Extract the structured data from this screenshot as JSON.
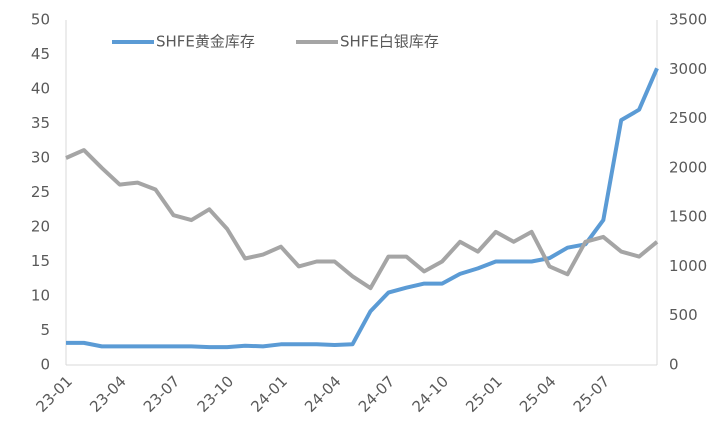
{
  "chart_data": {
    "type": "line",
    "categories": [
      "23-01",
      null,
      null,
      "23-04",
      null,
      null,
      "23-07",
      null,
      null,
      "23-10",
      null,
      null,
      "24-01",
      null,
      null,
      "24-04",
      null,
      null,
      "24-07",
      null,
      null,
      "24-10",
      null,
      null,
      "25-01",
      null,
      null,
      "25-04",
      null,
      null,
      "25-07",
      null,
      null,
      null
    ],
    "series": [
      {
        "name": "SHFE黄金库存",
        "color": "#5b9bd5",
        "axis": "y",
        "values": [
          3.2,
          3.2,
          2.7,
          2.7,
          2.7,
          2.7,
          2.7,
          2.7,
          2.6,
          2.6,
          2.8,
          2.7,
          3.0,
          3.0,
          3.0,
          2.9,
          3.0,
          7.8,
          10.5,
          11.2,
          11.8,
          11.8,
          13.2,
          14.0,
          15.0,
          15.0,
          15.0,
          15.5,
          17.0,
          17.5,
          21,
          35.5,
          37,
          43
        ]
      },
      {
        "name": "SHFE白银库存",
        "color": "#a5a5a5",
        "axis": "y2",
        "values": [
          2100,
          2180,
          2000,
          1830,
          1850,
          1780,
          1520,
          1470,
          1580,
          1380,
          1080,
          1120,
          1200,
          1000,
          1050,
          1050,
          900,
          780,
          1100,
          1100,
          950,
          1050,
          1250,
          1150,
          1350,
          1250,
          1350,
          1000,
          920,
          1250,
          1300,
          1150,
          1100,
          1250
        ]
      }
    ],
    "ylim": [
      0,
      50
    ],
    "yticks": [
      0,
      5,
      10,
      15,
      20,
      25,
      30,
      35,
      40,
      45,
      50
    ],
    "y2lim": [
      0,
      3500
    ],
    "y2ticks": [
      0,
      500,
      1000,
      1500,
      2000,
      2500,
      3000,
      3500
    ],
    "legend": "top",
    "grid": false
  }
}
